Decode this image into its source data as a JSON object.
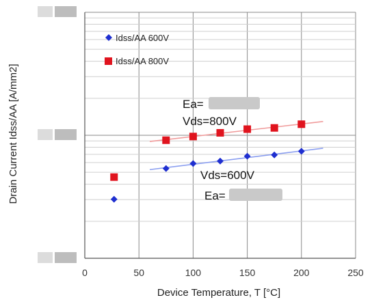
{
  "chart_data": {
    "type": "scatter",
    "xlabel": "Device Temperature, T [°C]",
    "ylabel": "Drain Current Idss/AA [A/mm2]",
    "xlim": [
      0,
      250
    ],
    "x_ticks": [
      "0",
      "50",
      "100",
      "150",
      "200",
      "250"
    ],
    "y_scale": "log",
    "y_tick_labels": "redacted (blurred)",
    "grid": true,
    "legend_position": "top-left",
    "series": [
      {
        "name": "Idss/AA 600V",
        "color": "#1f2fd0",
        "marker": "diamond",
        "x": [
          27,
          75,
          100,
          125,
          150,
          175,
          200
        ],
        "y_rel_decades": [
          0.48,
          0.73,
          0.77,
          0.79,
          0.83,
          0.84,
          0.87
        ],
        "fit_x_range": [
          60,
          220
        ]
      },
      {
        "name": "Idss/AA 800V",
        "color": "#e0141e",
        "marker": "square",
        "x": [
          27,
          75,
          100,
          125,
          150,
          175,
          200
        ],
        "y_rel_decades": [
          0.66,
          0.96,
          0.99,
          1.02,
          1.05,
          1.06,
          1.09
        ],
        "fit_x_range": [
          60,
          220
        ]
      }
    ],
    "annotations": {
      "ea_label": "Ea=",
      "vds_800": "Vds=800V",
      "vds_600": "Vds=600V"
    }
  }
}
